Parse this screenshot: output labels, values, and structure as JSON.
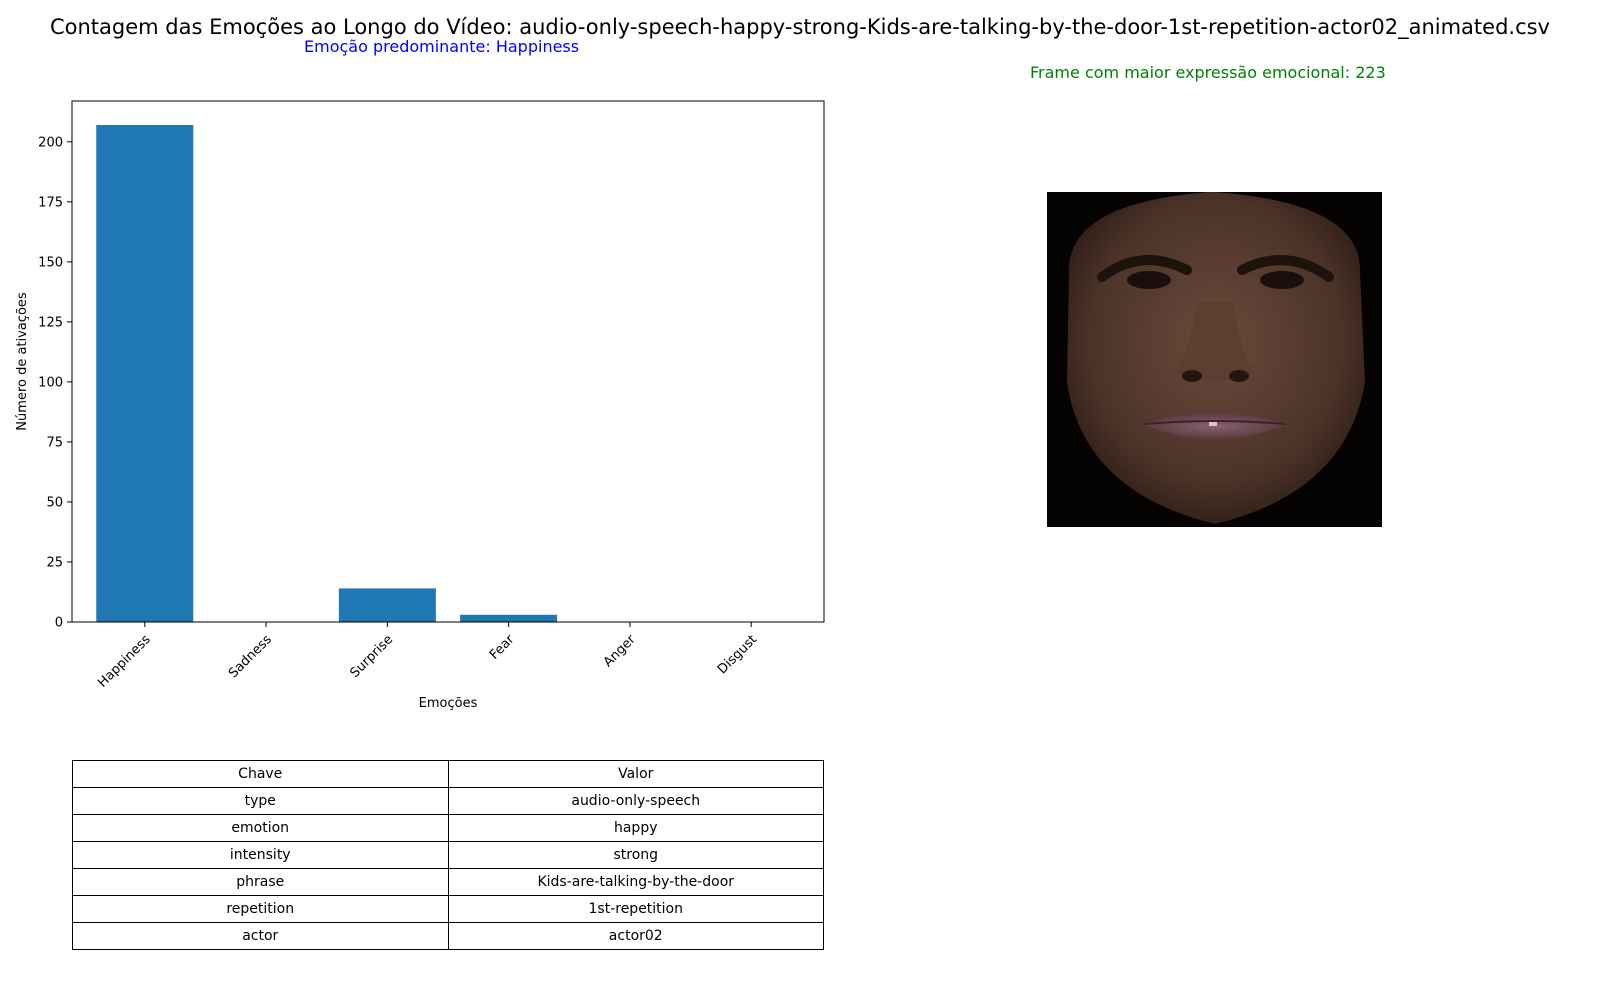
{
  "header": {
    "title": "Contagem das Emoções ao Longo do Vídeo: audio-only-speech-happy-strong-Kids-are-talking-by-the-door-1st-repetition-actor02_animated.csv",
    "predominant": "Emoção predominante: Happiness",
    "max_frame": "Frame com maior expressão emocional: 223"
  },
  "colors": {
    "bar": "#1f77b4",
    "predominant_text": "#0000ff",
    "frame_text": "#008000"
  },
  "chart_data": {
    "type": "bar",
    "categories": [
      "Happiness",
      "Sadness",
      "Surprise",
      "Fear",
      "Anger",
      "Disgust"
    ],
    "values": [
      207,
      0,
      14,
      3,
      0,
      0
    ],
    "xlabel": "Emoções",
    "ylabel": "Número de ativações",
    "ylim": [
      0,
      217
    ],
    "yticks": [
      0,
      25,
      50,
      75,
      100,
      125,
      150,
      175,
      200
    ],
    "grid": false
  },
  "table": {
    "header": [
      "Chave",
      "Valor"
    ],
    "rows": [
      [
        "type",
        "audio-only-speech"
      ],
      [
        "emotion",
        "happy"
      ],
      [
        "intensity",
        "strong"
      ],
      [
        "phrase",
        "Kids-are-talking-by-the-door"
      ],
      [
        "repetition",
        "1st-repetition"
      ],
      [
        "actor",
        "actor02"
      ]
    ]
  },
  "image": {
    "icon": "face-frame-image"
  }
}
